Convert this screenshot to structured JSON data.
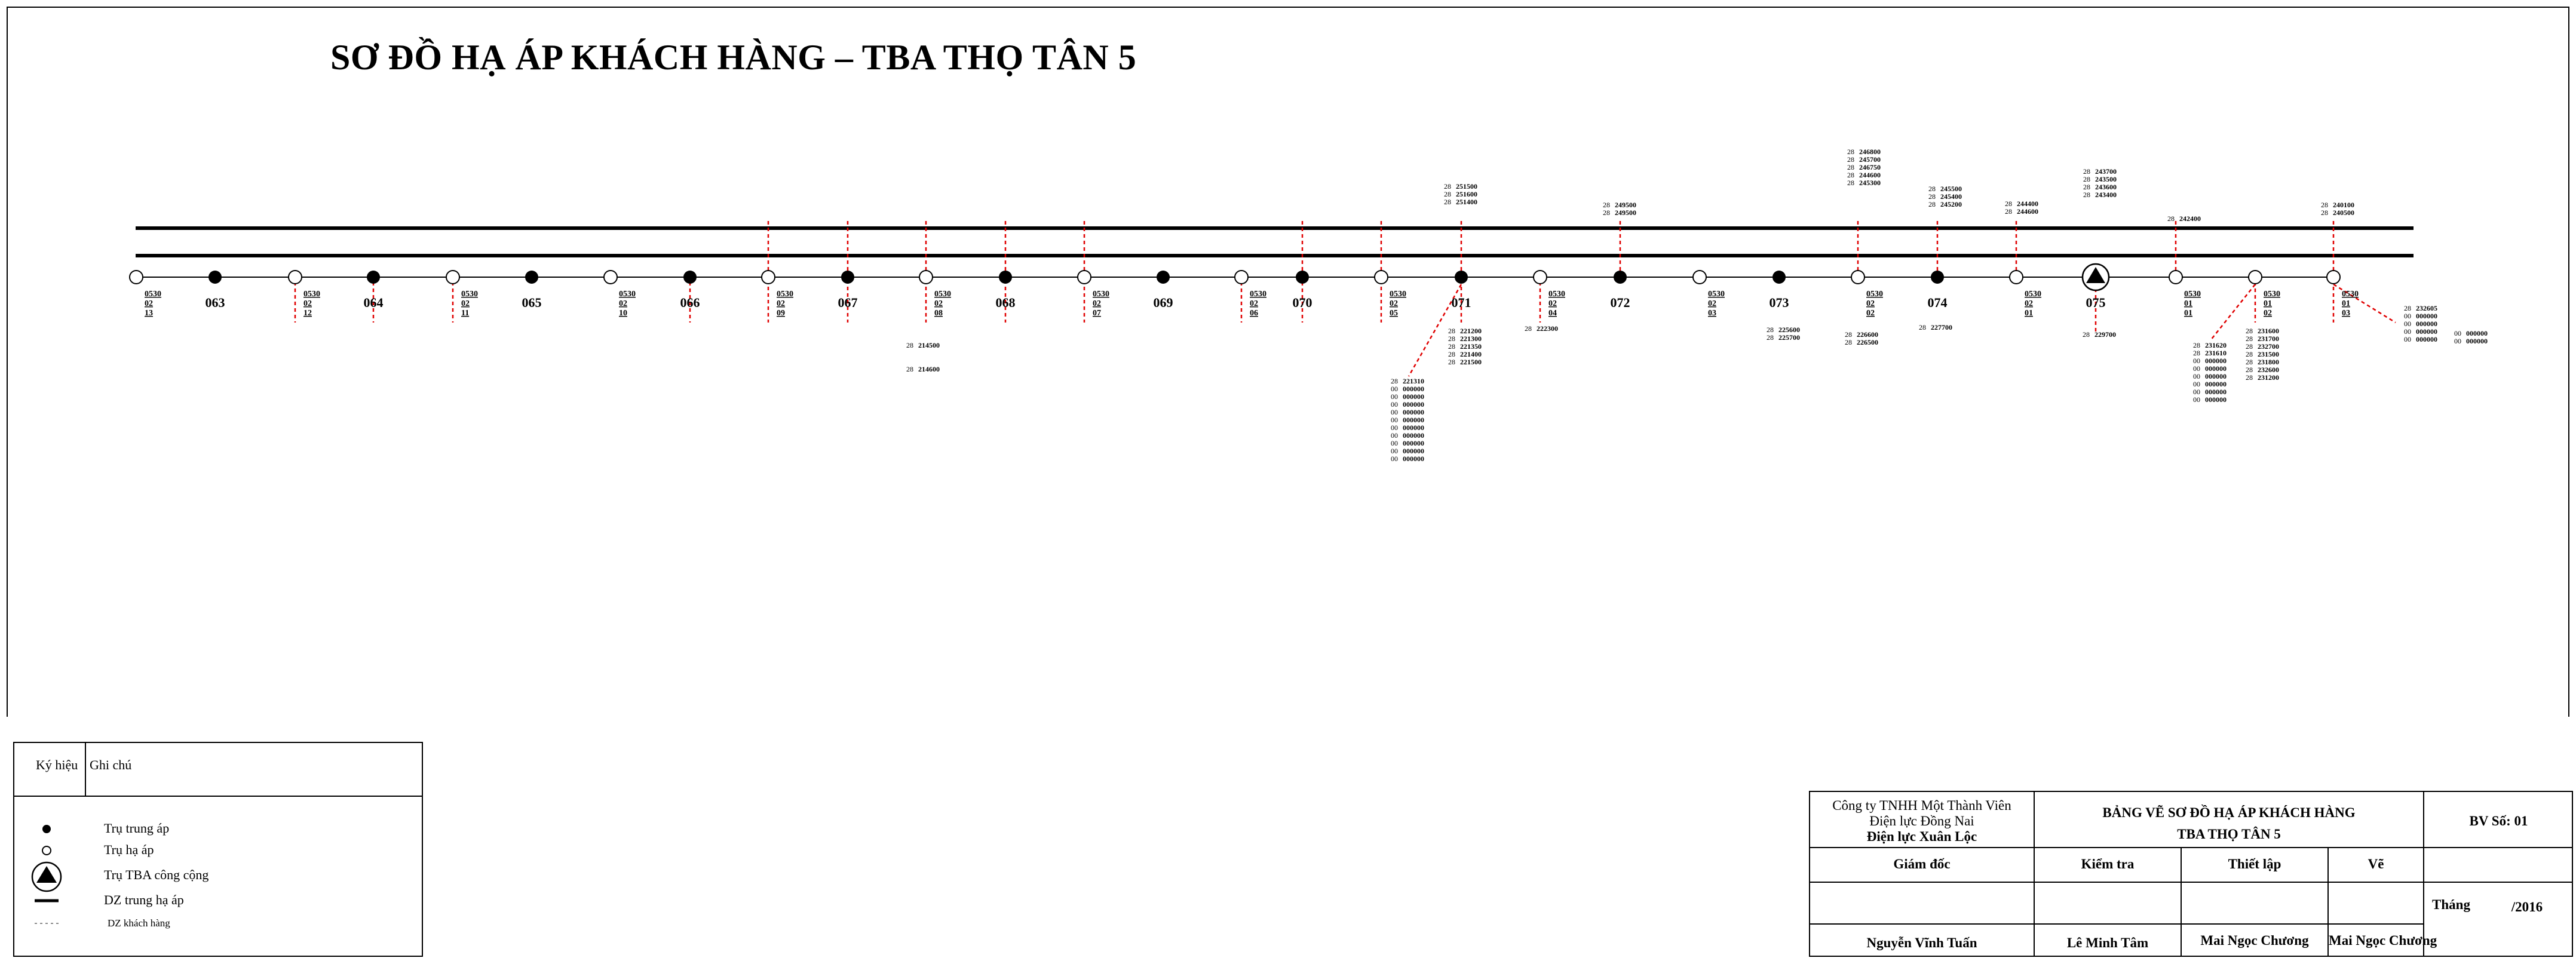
{
  "title": "SƠ ĐỒ HẠ ÁP KHÁCH HÀNG – TBA THỌ TÂN 5",
  "poles": [
    {
      "type": "low",
      "code": [
        "0530",
        "02",
        "13"
      ]
    },
    {
      "type": "mid",
      "label": "063"
    },
    {
      "type": "low",
      "code": [
        "0530",
        "02",
        "12"
      ]
    },
    {
      "type": "mid",
      "label": "064"
    },
    {
      "type": "low",
      "code": [
        "0530",
        "02",
        "11"
      ]
    },
    {
      "type": "mid",
      "label": "065"
    },
    {
      "type": "low",
      "code": [
        "0530",
        "02",
        "10"
      ]
    },
    {
      "type": "mid",
      "label": "066"
    },
    {
      "type": "low",
      "code": [
        "0530",
        "02",
        "09"
      ]
    },
    {
      "type": "mid",
      "label": "067"
    },
    {
      "type": "low",
      "code": [
        "0530",
        "02",
        "08"
      ]
    },
    {
      "type": "mid",
      "label": "068"
    },
    {
      "type": "low",
      "code": [
        "0530",
        "02",
        "07"
      ]
    },
    {
      "type": "mid",
      "label": "069"
    },
    {
      "type": "low",
      "code": [
        "0530",
        "02",
        "06"
      ]
    },
    {
      "type": "mid",
      "label": "070"
    },
    {
      "type": "low",
      "code": [
        "0530",
        "02",
        "05"
      ]
    },
    {
      "type": "mid",
      "label": "071"
    },
    {
      "type": "low",
      "code": [
        "0530",
        "02",
        "04"
      ]
    },
    {
      "type": "mid",
      "label": "072"
    },
    {
      "type": "low",
      "code": [
        "0530",
        "02",
        "03"
      ]
    },
    {
      "type": "mid",
      "label": "073"
    },
    {
      "type": "low",
      "code": [
        "0530",
        "02",
        "02"
      ]
    },
    {
      "type": "mid",
      "label": "074"
    },
    {
      "type": "low",
      "code": [
        "0530",
        "02",
        "01"
      ]
    },
    {
      "type": "tba",
      "label": "075"
    },
    {
      "type": "low",
      "code": [
        "0530",
        "01",
        "01"
      ]
    },
    {
      "type": "low",
      "code": [
        "0530",
        "01",
        "02"
      ]
    },
    {
      "type": "low",
      "code": [
        "0530",
        "01",
        "03"
      ]
    }
  ],
  "customer_groups": [
    {
      "rows": [
        [
          "28",
          "251500"
        ],
        [
          "28",
          "251600"
        ],
        [
          "28",
          "251400"
        ]
      ]
    },
    {
      "rows": [
        [
          "28",
          "249500"
        ],
        [
          "28",
          "249500"
        ]
      ]
    },
    {
      "rows": [
        [
          "28",
          "246800"
        ],
        [
          "28",
          "245700"
        ],
        [
          "28",
          "246750"
        ],
        [
          "28",
          "244600"
        ],
        [
          "28",
          "245300"
        ]
      ]
    },
    {
      "rows": [
        [
          "28",
          "245500"
        ],
        [
          "28",
          "245400"
        ],
        [
          "28",
          "245200"
        ]
      ]
    },
    {
      "rows": [
        [
          "28",
          "244400"
        ],
        [
          "28",
          "244600"
        ]
      ]
    },
    {
      "rows": [
        [
          "28",
          "243700"
        ],
        [
          "28",
          "243500"
        ],
        [
          "28",
          "243600"
        ],
        [
          "28",
          "243400"
        ]
      ]
    },
    {
      "rows": [
        [
          "28",
          "242400"
        ]
      ]
    },
    {
      "rows": [
        [
          "28",
          "240100"
        ],
        [
          "28",
          "240500"
        ]
      ]
    },
    {
      "rows": [
        [
          "28",
          "214500"
        ]
      ]
    },
    {
      "rows": [
        [
          "28",
          "214600"
        ]
      ]
    },
    {
      "rows": [
        [
          "28",
          "221200"
        ],
        [
          "28",
          "221300"
        ],
        [
          "28",
          "221350"
        ],
        [
          "28",
          "221400"
        ],
        [
          "28",
          "221500"
        ]
      ]
    },
    {
      "rows": [
        [
          "28",
          "221310"
        ],
        [
          "00",
          "000000"
        ],
        [
          "00",
          "000000"
        ],
        [
          "00",
          "000000"
        ],
        [
          "00",
          "000000"
        ],
        [
          "00",
          "000000"
        ],
        [
          "00",
          "000000"
        ],
        [
          "00",
          "000000"
        ],
        [
          "00",
          "000000"
        ],
        [
          "00",
          "000000"
        ],
        [
          "00",
          "000000"
        ]
      ]
    },
    {
      "rows": [
        [
          "28",
          "222300"
        ]
      ]
    },
    {
      "rows": [
        [
          "28",
          "225600"
        ],
        [
          "28",
          "225700"
        ]
      ]
    },
    {
      "rows": [
        [
          "28",
          "226600"
        ],
        [
          "28",
          "226500"
        ]
      ]
    },
    {
      "rows": [
        [
          "28",
          "227700"
        ]
      ]
    },
    {
      "rows": [
        [
          "28",
          "229700"
        ]
      ]
    },
    {
      "rows": [
        [
          "28",
          "231620"
        ],
        [
          "28",
          "231610"
        ],
        [
          "00",
          "000000"
        ],
        [
          "00",
          "000000"
        ],
        [
          "00",
          "000000"
        ],
        [
          "00",
          "000000"
        ],
        [
          "00",
          "000000"
        ],
        [
          "00",
          "000000"
        ]
      ]
    },
    {
      "rows": [
        [
          "28",
          "231600"
        ],
        [
          "28",
          "231700"
        ],
        [
          "28",
          "232700"
        ],
        [
          "28",
          "231500"
        ],
        [
          "28",
          "231800"
        ],
        [
          "28",
          "232600"
        ],
        [
          "28",
          "231200"
        ]
      ]
    },
    {
      "rows": [
        [
          "28",
          "232605"
        ],
        [
          "00",
          "000000"
        ],
        [
          "00",
          "000000"
        ],
        [
          "00",
          "000000"
        ],
        [
          "00",
          "000000"
        ]
      ]
    },
    {
      "rows": [
        [
          "00",
          "000000"
        ],
        [
          "00",
          "000000"
        ]
      ]
    }
  ],
  "legend": {
    "header_symbol": "Ký hiệu",
    "header_note": "Ghi chú",
    "items": [
      {
        "icon": "filled-circle-icon",
        "text": "Trụ trung áp"
      },
      {
        "icon": "open-circle-icon",
        "text": "Trụ hạ áp"
      },
      {
        "icon": "tba-pole-icon",
        "text": "Trụ TBA công cộng"
      },
      {
        "icon": "thick-line-icon",
        "text": "DZ trung hạ áp"
      },
      {
        "icon": "dashed-line-icon",
        "text": "DZ khách hàng"
      }
    ]
  },
  "title_block": {
    "company_line1": "Công ty TNHH Một Thành Viên",
    "company_line2": "Điện lực Đồng Nai",
    "company_line3": "Điện lực Xuân Lộc",
    "drawing_title_1": "BẢNG VẼ SƠ ĐỒ HẠ ÁP KHÁCH HÀNG",
    "drawing_title_2": "TBA THỌ TÂN 5",
    "drawing_number": "BV Số: 01",
    "roles": [
      "Giám đốc",
      "Kiểm tra",
      "Thiết lập",
      "Vẽ"
    ],
    "names": [
      "Nguyễn Vĩnh Tuấn",
      "Lê Minh Tâm",
      "Mai Ngọc Chương",
      "Mai Ngọc Chương"
    ],
    "month_label": "Tháng",
    "year_label": "/2016"
  },
  "colors": {
    "customer_line": "#e00000",
    "line": "#000000"
  }
}
